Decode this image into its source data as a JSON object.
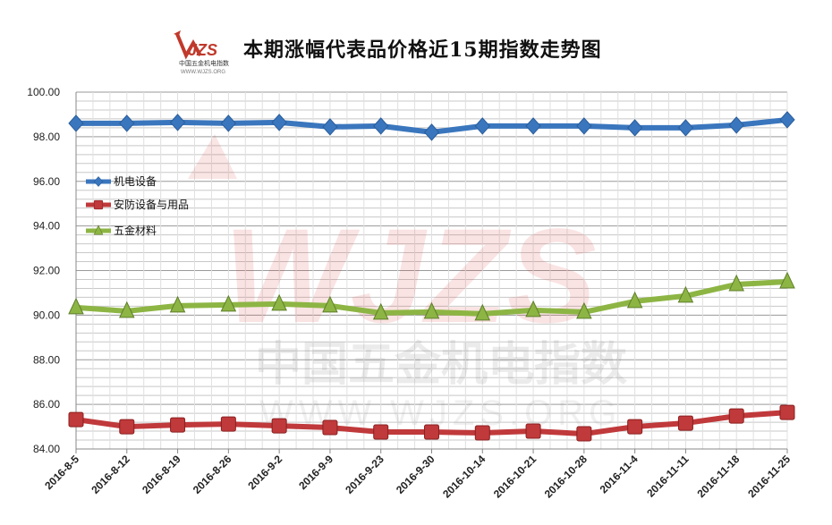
{
  "header": {
    "title": "本期涨幅代表品价格近15期指数走势图",
    "logo_text": "WJZS",
    "logo_sub": "中国五金机电指数",
    "logo_url": "WWW.WJZS.ORG"
  },
  "watermark": {
    "text": "中国五金机电指数",
    "url": "WWW.WJZS.ORG",
    "logo": "WJZS"
  },
  "chart_data": {
    "type": "line",
    "title": "本期涨幅代表品价格近15期指数走势图",
    "categories": [
      "2016-8-5",
      "2016-8-12",
      "2016-8-19",
      "2016-8-26",
      "2016-9-2",
      "2016-9-9",
      "2016-9-23",
      "2016-9-30",
      "2016-10-14",
      "2016-10-21",
      "2016-10-28",
      "2016-11-4",
      "2016-11-11",
      "2016-11-18",
      "2016-11-25"
    ],
    "ylim": [
      84,
      100
    ],
    "yticks": [
      "84.00",
      "86.00",
      "88.00",
      "90.00",
      "92.00",
      "94.00",
      "96.00",
      "98.00",
      "100.00"
    ],
    "grid": true,
    "legend_position": "left",
    "series": [
      {
        "name": "机电设备",
        "color": "#3a76bd",
        "marker": "diamond",
        "values": [
          98.6,
          98.6,
          98.64,
          98.6,
          98.64,
          98.44,
          98.48,
          98.2,
          98.48,
          98.48,
          98.48,
          98.4,
          98.4,
          98.52,
          98.76
        ]
      },
      {
        "name": "安防设备与用品",
        "color": "#c0393b",
        "marker": "square",
        "values": [
          85.32,
          85.0,
          85.08,
          85.12,
          85.04,
          84.96,
          84.76,
          84.76,
          84.72,
          84.8,
          84.68,
          85.0,
          85.16,
          85.48,
          85.64
        ]
      },
      {
        "name": "五金材料",
        "color": "#8db544",
        "marker": "triangle",
        "values": [
          90.34,
          90.18,
          90.42,
          90.46,
          90.5,
          90.42,
          90.1,
          90.14,
          90.06,
          90.22,
          90.14,
          90.62,
          90.86,
          91.38,
          91.5
        ]
      }
    ]
  }
}
